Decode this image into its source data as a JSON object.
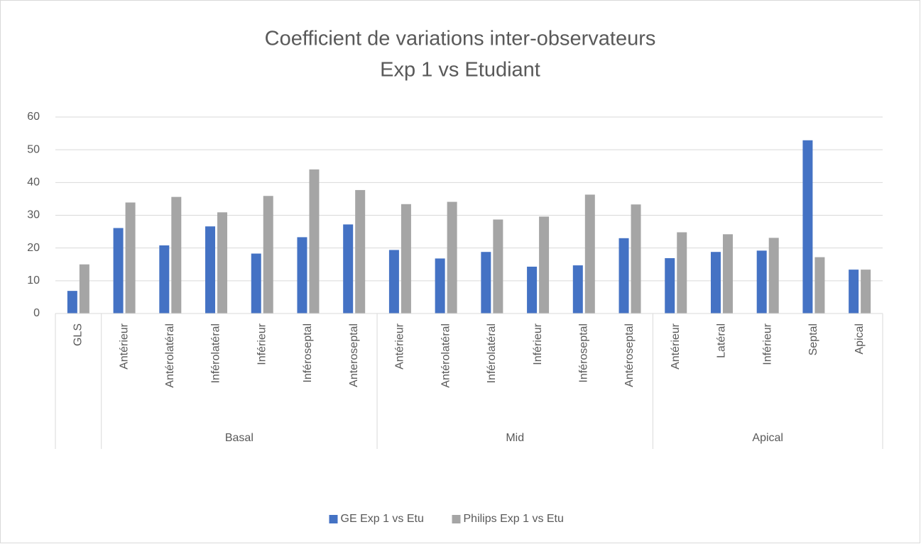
{
  "chart_data": {
    "type": "bar",
    "title": "Coefficient de variations inter-observateurs",
    "subtitle": "Exp 1 vs Etudiant",
    "category_groups": [
      {
        "name": null,
        "categories": [
          "GLS"
        ]
      },
      {
        "name": "Basal",
        "categories": [
          "Antérieur",
          "Antérolatéral",
          "Inférolatéral",
          "Inférieur",
          "Inféroseptal",
          "Anteroseptal"
        ]
      },
      {
        "name": "Mid",
        "categories": [
          "Antérieur",
          "Antérolatéral",
          "Inférolatéral",
          "Inférieur",
          "Inféroseptal",
          "Antéroseptal"
        ]
      },
      {
        "name": "Apical",
        "categories": [
          "Antérieur",
          "Latéral",
          "Inférieur",
          "Septal",
          "Apical"
        ]
      }
    ],
    "series": [
      {
        "name": "GE Exp 1 vs Etu",
        "color": "#4472c4",
        "values": [
          6.9,
          26.1,
          20.8,
          26.6,
          18.3,
          23.3,
          27.2,
          19.4,
          16.8,
          18.8,
          14.3,
          14.7,
          23.0,
          16.9,
          18.8,
          19.2,
          52.9,
          13.4
        ]
      },
      {
        "name": "Philips Exp 1 vs Etu",
        "color": "#a5a5a5",
        "values": [
          15.0,
          33.9,
          35.6,
          30.9,
          35.9,
          44.0,
          37.7,
          33.4,
          34.1,
          28.7,
          29.6,
          36.3,
          33.3,
          24.8,
          24.2,
          23.1,
          17.2,
          13.4
        ]
      }
    ],
    "ylim": [
      0,
      60
    ],
    "yticks": [
      0,
      10,
      20,
      30,
      40,
      50,
      60
    ],
    "grid": true,
    "legend": "bottom"
  }
}
